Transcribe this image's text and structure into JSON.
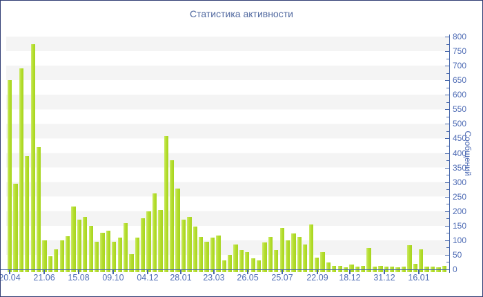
{
  "window": {
    "title": "Статистика активности"
  },
  "colors": {
    "frame_border": "#2e3b72",
    "axis_line": "#4465aa",
    "text": "#4f6cb5",
    "title_text": "#50689f",
    "bar_fill": "#b5de2f",
    "bar_highlight": "#cdea6c",
    "stripe_gray": "#f4f4f4",
    "background": "#ffffff"
  },
  "chart_data": {
    "type": "bar",
    "title": "Статистика активности",
    "xlabel": "",
    "ylabel": "Сообщений",
    "ylim": [
      0,
      800
    ],
    "y_major_step": 50,
    "y_minor_step": 25,
    "grid": "alternating horizontal bands every 50 units",
    "legend": "none",
    "y_axis_side": "right",
    "x_tick_labels": [
      "20.04",
      "21.06",
      "15.08",
      "09.10",
      "04.12",
      "28.01",
      "23.03",
      "26.05",
      "25.07",
      "22.09",
      "18.12",
      "31.12",
      "16.01"
    ],
    "x_tick_positions_pct": [
      0.78,
      8.57,
      16.36,
      24.14,
      31.93,
      39.41,
      46.88,
      54.52,
      62.31,
      70.25,
      77.57,
      85.36,
      93.15
    ],
    "values": [
      650,
      295,
      690,
      390,
      775,
      420,
      100,
      45,
      70,
      100,
      115,
      215,
      170,
      180,
      150,
      95,
      125,
      133,
      95,
      110,
      158,
      52,
      110,
      175,
      200,
      260,
      205,
      458,
      375,
      278,
      170,
      180,
      148,
      112,
      94,
      110,
      117,
      30,
      50,
      86,
      67,
      60,
      37,
      32,
      93,
      112,
      67,
      142,
      100,
      124,
      112,
      85,
      154,
      41,
      59,
      23,
      12,
      13,
      7,
      17,
      9,
      13,
      73,
      9,
      12,
      9,
      9,
      7,
      9,
      83,
      20,
      70,
      9,
      9,
      7,
      12
    ]
  }
}
